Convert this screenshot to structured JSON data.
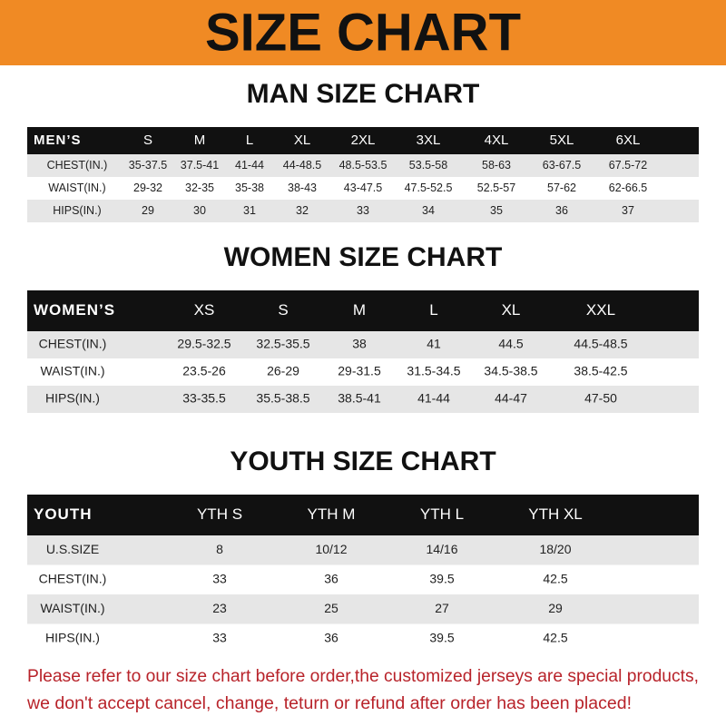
{
  "header": {
    "title": "SIZE CHART"
  },
  "tables": [
    {
      "title": "MAN SIZE CHART",
      "columns": [
        "MEN’S",
        "S",
        "M",
        "L",
        "XL",
        "2XL",
        "3XL",
        "4XL",
        "5XL",
        "6XL"
      ],
      "rows": [
        [
          "CHEST(IN.)",
          "35-37.5",
          "37.5-41",
          "41-44",
          "44-48.5",
          "48.5-53.5",
          "53.5-58",
          "58-63",
          "63-67.5",
          "67.5-72"
        ],
        [
          "WAIST(IN.)",
          "29-32",
          "32-35",
          "35-38",
          "38-43",
          "43-47.5",
          "47.5-52.5",
          "52.5-57",
          "57-62",
          "62-66.5"
        ],
        [
          "HIPS(IN.)",
          "29",
          "30",
          "31",
          "32",
          "33",
          "34",
          "35",
          "36",
          "37"
        ]
      ]
    },
    {
      "title": "WOMEN SIZE CHART",
      "columns": [
        "WOMEN’S",
        "XS",
        "S",
        "M",
        "L",
        "XL",
        "XXL"
      ],
      "rows": [
        [
          "CHEST(IN.)",
          "29.5-32.5",
          "32.5-35.5",
          "38",
          "41",
          "44.5",
          "44.5-48.5"
        ],
        [
          "WAIST(IN.)",
          "23.5-26",
          "26-29",
          "29-31.5",
          "31.5-34.5",
          "34.5-38.5",
          "38.5-42.5"
        ],
        [
          "HIPS(IN.)",
          "33-35.5",
          "35.5-38.5",
          "38.5-41",
          "41-44",
          "44-47",
          "47-50"
        ]
      ]
    },
    {
      "title": "YOUTH SIZE CHART",
      "columns": [
        "YOUTH",
        "YTH S",
        "YTH M",
        "YTH L",
        "YTH XL"
      ],
      "rows": [
        [
          "U.S.SIZE",
          "8",
          "10/12",
          "14/16",
          "18/20"
        ],
        [
          "CHEST(IN.)",
          "33",
          "36",
          "39.5",
          "42.5"
        ],
        [
          "WAIST(IN.)",
          "23",
          "25",
          "27",
          "29"
        ],
        [
          "HIPS(IN.)",
          "33",
          "36",
          "39.5",
          "42.5"
        ]
      ]
    }
  ],
  "note": [
    "Please refer to our size chart before order,the customized jerseys are special products,",
    "we don't accept cancel, change, teturn or refund after order has been placed!"
  ]
}
